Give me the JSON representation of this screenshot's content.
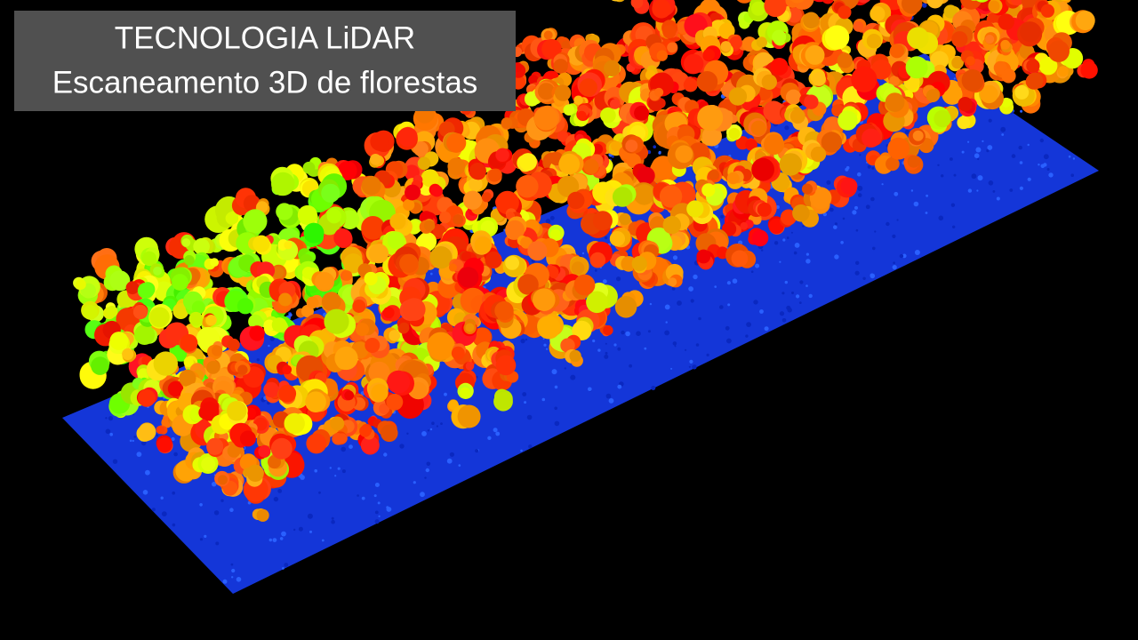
{
  "title_box": {
    "lines": [
      "TECNOLOGIA LiDAR",
      "Escaneamento 3D de florestas"
    ]
  }
}
